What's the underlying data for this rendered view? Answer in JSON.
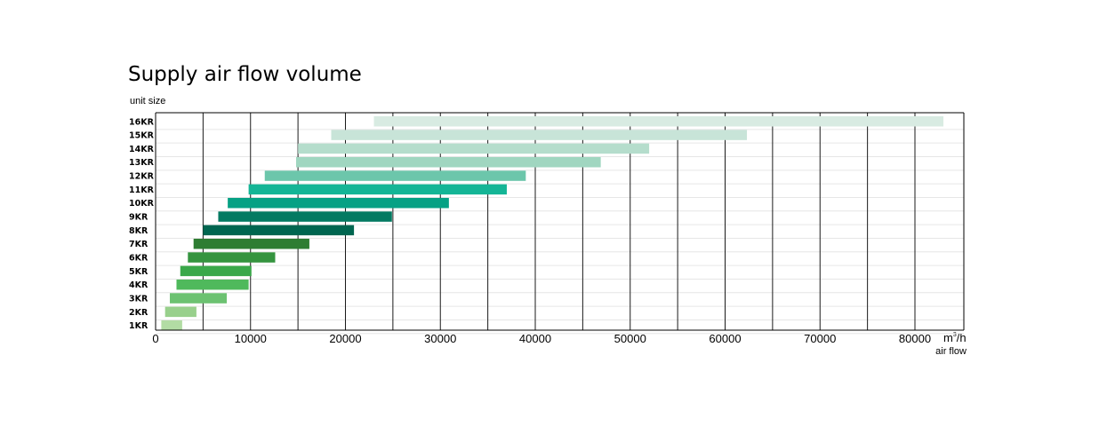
{
  "chart_data": {
    "type": "bar",
    "orientation": "horizontal-range",
    "title": "Supply air flow volume",
    "ylabel": "unit size",
    "xlabel": "air flow",
    "unit": {
      "base": "m",
      "exponent": "3",
      "suffix": "/h"
    },
    "xlim": [
      0,
      85000
    ],
    "xticks": [
      0,
      10000,
      20000,
      30000,
      40000,
      50000,
      60000,
      70000,
      80000
    ],
    "xtick_labels": [
      "0",
      "10000",
      "20000",
      "30000",
      "40000",
      "50000",
      "60000",
      "70000",
      "80000"
    ],
    "gridlines": [
      5000,
      10000,
      15000,
      20000,
      25000,
      30000,
      35000,
      40000,
      45000,
      50000,
      55000,
      60000,
      65000,
      70000,
      75000,
      80000
    ],
    "grid": true,
    "categories": [
      "16KR",
      "15KR",
      "14KR",
      "13KR",
      "12KR",
      "11KR",
      "10KR",
      "9KR",
      "8KR",
      "7KR",
      "6KR",
      "5KR",
      "4KR",
      "3KR",
      "2KR",
      "1KR"
    ],
    "ranges": [
      {
        "min": 23000,
        "max": 83000,
        "color": "#d8ebe2"
      },
      {
        "min": 18500,
        "max": 62300,
        "color": "#c8e4d8"
      },
      {
        "min": 15000,
        "max": 52000,
        "color": "#b5ddcc"
      },
      {
        "min": 14800,
        "max": 46900,
        "color": "#a0d6c0"
      },
      {
        "min": 11500,
        "max": 39000,
        "color": "#6cc6ab"
      },
      {
        "min": 9800,
        "max": 37000,
        "color": "#14b596"
      },
      {
        "min": 7600,
        "max": 30900,
        "color": "#06a184"
      },
      {
        "min": 6600,
        "max": 24900,
        "color": "#047a62"
      },
      {
        "min": 5000,
        "max": 20900,
        "color": "#006650"
      },
      {
        "min": 4000,
        "max": 16200,
        "color": "#2e7d32"
      },
      {
        "min": 3400,
        "max": 12600,
        "color": "#35943f"
      },
      {
        "min": 2600,
        "max": 10100,
        "color": "#3aa84a"
      },
      {
        "min": 2200,
        "max": 9800,
        "color": "#4fb95c"
      },
      {
        "min": 1500,
        "max": 7500,
        "color": "#6cc271"
      },
      {
        "min": 1000,
        "max": 4300,
        "color": "#98d08c"
      },
      {
        "min": 600,
        "max": 2800,
        "color": "#b2dca4"
      }
    ]
  }
}
